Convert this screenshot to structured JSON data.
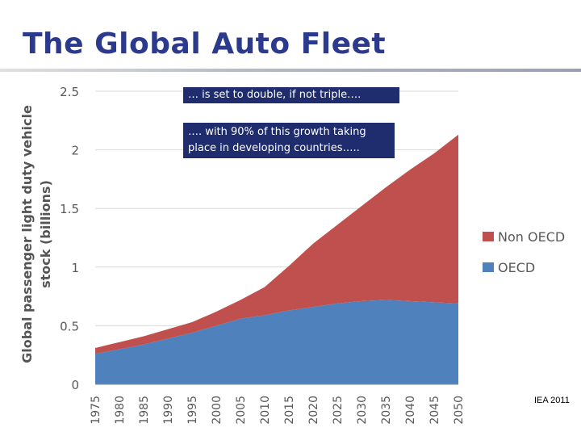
{
  "slide": {
    "title": "The Global Auto Fleet",
    "callout_1": "… is set to double, if not triple….",
    "callout_2_line1": "…. with 90% of this growth taking",
    "callout_2_line2": "place in developing countries…..",
    "source": "IEA 2011"
  },
  "colors": {
    "title": "#2b3a8c",
    "callout_bg": "#1f2d6e",
    "oecd": "#4f81bd",
    "non_oecd": "#c0504d"
  },
  "chart_data": {
    "type": "area",
    "stacked": true,
    "title": "",
    "ylabel_line1": "Global passenger light duty vehicle",
    "ylabel_line2": "stock (billions)",
    "xlabel": "",
    "x": [
      "1975",
      "1980",
      "1985",
      "1990",
      "1995",
      "2000",
      "2005",
      "2010",
      "2015",
      "2020",
      "2025",
      "2030",
      "2035",
      "2040",
      "2045",
      "2050"
    ],
    "ylim": [
      0,
      2.5
    ],
    "yticks": [
      "0",
      "0.5",
      "1",
      "1.5",
      "2",
      "2.5"
    ],
    "grid": true,
    "legend_position": "right",
    "series": [
      {
        "name": "OECD",
        "color": "#4f81bd",
        "values": [
          0.26,
          0.3,
          0.34,
          0.39,
          0.44,
          0.5,
          0.56,
          0.59,
          0.63,
          0.66,
          0.69,
          0.71,
          0.72,
          0.71,
          0.7,
          0.69
        ]
      },
      {
        "name": "Non OECD",
        "color": "#c0504d",
        "values": [
          0.05,
          0.06,
          0.07,
          0.08,
          0.09,
          0.12,
          0.16,
          0.24,
          0.38,
          0.54,
          0.67,
          0.81,
          0.96,
          1.12,
          1.27,
          1.44
        ]
      }
    ]
  }
}
